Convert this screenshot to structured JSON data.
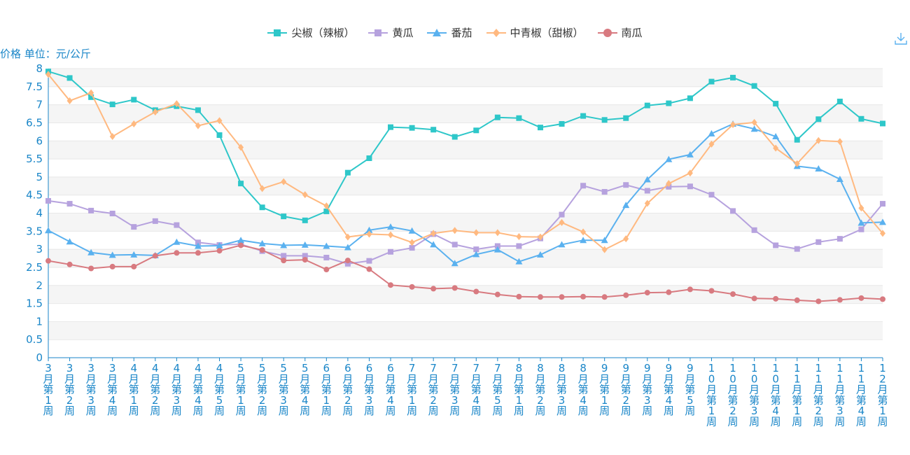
{
  "chart_data": {
    "type": "line",
    "ylabel": "价格 单位：元/公斤",
    "ylim": [
      0,
      8
    ],
    "yticks": [
      "0",
      "0.5",
      "1",
      "1.5",
      "2",
      "2.5",
      "3",
      "3.5",
      "4",
      "4.5",
      "5",
      "5.5",
      "6",
      "6.5",
      "7",
      "7.5",
      "8"
    ],
    "grid": "alternating bands",
    "legend_position": "top-center",
    "categories": [
      "3月第1周",
      "3月第2周",
      "3月第3周",
      "3月第4周",
      "4月第1周",
      "4月第2周",
      "4月第3周",
      "4月第4周",
      "4月第5周",
      "5月第1周",
      "5月第2周",
      "5月第3周",
      "5月第4周",
      "6月第1周",
      "6月第2周",
      "6月第3周",
      "6月第4周",
      "7月第1周",
      "7月第2周",
      "7月第3周",
      "7月第4周",
      "7月第5周",
      "8月第1周",
      "8月第2周",
      "8月第3周",
      "8月第4周",
      "9月第1周",
      "9月第2周",
      "9月第3周",
      "9月第4周",
      "9月第5周",
      "10月第1周",
      "10月第2周",
      "10月第3周",
      "10月第4周",
      "11月第1周",
      "11月第2周",
      "11月第3周",
      "11月第4周",
      "12月第1周"
    ],
    "series": [
      {
        "name": "尖椒（辣椒）",
        "color": "#2ec7c9",
        "symbol": "square",
        "values": [
          7.92,
          7.74,
          7.21,
          7.01,
          7.14,
          6.85,
          6.96,
          6.85,
          6.16,
          4.82,
          4.16,
          3.91,
          3.8,
          4.05,
          5.12,
          5.52,
          6.38,
          6.36,
          6.31,
          6.11,
          6.29,
          6.65,
          6.63,
          6.37,
          6.47,
          6.69,
          6.58,
          6.63,
          6.98,
          7.04,
          7.18,
          7.64,
          7.75,
          7.52,
          7.03,
          6.03,
          6.6,
          7.09,
          6.61,
          6.48
        ]
      },
      {
        "name": "黄瓜",
        "color": "#b6a2de",
        "symbol": "square",
        "values": [
          4.34,
          4.26,
          4.07,
          3.99,
          3.62,
          3.78,
          3.67,
          3.19,
          3.12,
          3.14,
          2.95,
          2.82,
          2.82,
          2.77,
          2.6,
          2.68,
          2.93,
          3.04,
          3.42,
          3.13,
          3.0,
          3.09,
          3.09,
          3.3,
          3.96,
          4.76,
          4.59,
          4.78,
          4.62,
          4.73,
          4.74,
          4.51,
          4.06,
          3.53,
          3.11,
          3.01,
          3.2,
          3.29,
          3.55,
          4.26
        ]
      },
      {
        "name": "番茄",
        "color": "#5ab1ef",
        "symbol": "triangle",
        "values": [
          3.52,
          3.21,
          2.91,
          2.84,
          2.85,
          2.83,
          3.2,
          3.09,
          3.1,
          3.25,
          3.16,
          3.11,
          3.12,
          3.09,
          3.05,
          3.53,
          3.62,
          3.51,
          3.13,
          2.61,
          2.86,
          2.99,
          2.66,
          2.85,
          3.13,
          3.25,
          3.25,
          4.22,
          4.93,
          5.49,
          5.62,
          6.2,
          6.47,
          6.33,
          6.12,
          5.3,
          5.23,
          4.94,
          3.73,
          3.75
        ]
      },
      {
        "name": "中青椒（甜椒）",
        "color": "#ffb980",
        "symbol": "diamond",
        "values": [
          7.84,
          7.11,
          7.33,
          6.12,
          6.47,
          6.8,
          7.03,
          6.42,
          6.56,
          5.82,
          4.68,
          4.87,
          4.51,
          4.2,
          3.34,
          3.42,
          3.4,
          3.19,
          3.44,
          3.52,
          3.46,
          3.46,
          3.35,
          3.34,
          3.74,
          3.48,
          2.99,
          3.29,
          4.27,
          4.82,
          5.11,
          5.91,
          6.45,
          6.51,
          5.8,
          5.37,
          6.01,
          5.98,
          4.14,
          3.44
        ]
      },
      {
        "name": "南瓜",
        "color": "#d87a80",
        "symbol": "circle",
        "values": [
          2.68,
          2.58,
          2.47,
          2.52,
          2.52,
          2.82,
          2.9,
          2.9,
          2.96,
          3.11,
          2.98,
          2.69,
          2.71,
          2.44,
          2.69,
          2.45,
          2.01,
          1.96,
          1.91,
          1.93,
          1.83,
          1.75,
          1.69,
          1.68,
          1.68,
          1.69,
          1.68,
          1.73,
          1.8,
          1.81,
          1.89,
          1.85,
          1.76,
          1.64,
          1.63,
          1.59,
          1.56,
          1.6,
          1.65,
          1.62
        ]
      }
    ]
  }
}
